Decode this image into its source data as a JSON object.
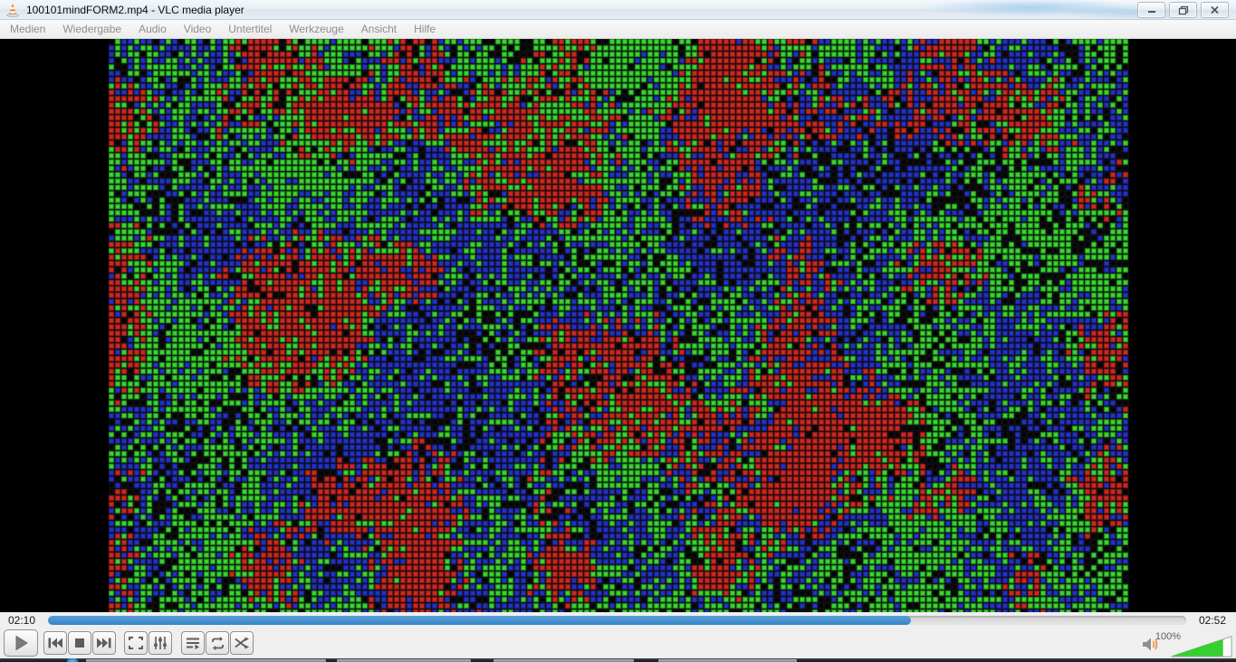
{
  "window": {
    "title": "100101mindFORM2.mp4 - VLC media player",
    "app_icon": "vlc-cone-icon",
    "controls": {
      "minimize": "minimize-icon",
      "restore": "restore-icon",
      "close": "close-icon"
    }
  },
  "menubar": {
    "items": [
      {
        "label": "Medien"
      },
      {
        "label": "Wiedergabe"
      },
      {
        "label": "Audio"
      },
      {
        "label": "Video"
      },
      {
        "label": "Untertitel"
      },
      {
        "label": "Werkzeuge"
      },
      {
        "label": "Ansicht"
      },
      {
        "label": "Hilfe"
      }
    ]
  },
  "video": {
    "pattern": {
      "cols": 161,
      "rows": 91,
      "cell": 7,
      "seed": 20100101,
      "grid_color": "#08080c",
      "colors": {
        "red": {
          "base": "#8e1a16",
          "bright": "#cc2a20"
        },
        "green": {
          "base": "#1f8f1c",
          "bright": "#3fd434"
        },
        "blue": {
          "base": "#19227e",
          "bright": "#2433c8"
        },
        "black": {
          "base": "#111111",
          "bright": "#020202"
        }
      }
    }
  },
  "transport": {
    "elapsed": "02:10",
    "total": "02:52",
    "progress_percent": 75.8,
    "seek_fill_color": "#3583c6"
  },
  "toolbar": {
    "icons": [
      "play-icon",
      "previous-icon",
      "stop-icon",
      "next-icon",
      "fullscreen-icon",
      "extended-settings-icon",
      "playlist-icon",
      "loop-icon",
      "random-icon"
    ]
  },
  "volume": {
    "percent_label": "100%",
    "fill_percent": 86,
    "fill_color": "#35cf2e",
    "speaker_icon": "speaker-icon"
  }
}
